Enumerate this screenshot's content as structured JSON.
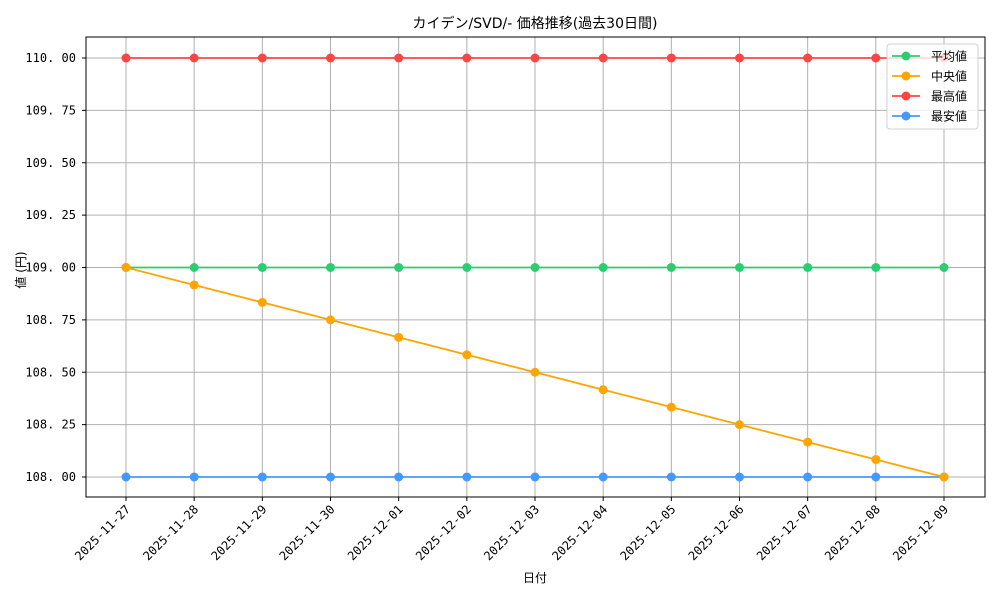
{
  "chart_data": {
    "type": "line",
    "title": "カイデン/SVD/- 価格推移(過去30日間)",
    "xlabel": "日付",
    "ylabel": "値 (円)",
    "x": [
      "2025-11-27",
      "2025-11-28",
      "2025-11-29",
      "2025-11-30",
      "2025-12-01",
      "2025-12-02",
      "2025-12-03",
      "2025-12-04",
      "2025-12-05",
      "2025-12-06",
      "2025-12-07",
      "2025-12-08",
      "2025-12-09"
    ],
    "series": [
      {
        "name": "平均値",
        "color": "#2ecc71",
        "values": [
          109,
          109,
          109,
          109,
          109,
          109,
          109,
          109,
          109,
          109,
          109,
          109,
          109
        ]
      },
      {
        "name": "中央値",
        "color": "#ffa500",
        "values": [
          109.0,
          108.9167,
          108.8333,
          108.75,
          108.6667,
          108.5833,
          108.5,
          108.4167,
          108.3333,
          108.25,
          108.1667,
          108.0833,
          108.0
        ]
      },
      {
        "name": "最高値",
        "color": "#ff4444",
        "values": [
          110,
          110,
          110,
          110,
          110,
          110,
          110,
          110,
          110,
          110,
          110,
          110,
          110
        ]
      },
      {
        "name": "最安値",
        "color": "#4499ff",
        "values": [
          108,
          108,
          108,
          108,
          108,
          108,
          108,
          108,
          108,
          108,
          108,
          108,
          108
        ]
      }
    ],
    "yticks": [
      "108.00",
      "108.25",
      "108.50",
      "108.75",
      "109.00",
      "109.25",
      "109.50",
      "109.75",
      "110.00"
    ],
    "ylim": [
      107.9,
      110.1
    ],
    "grid": true,
    "legend_position": "upper right"
  }
}
